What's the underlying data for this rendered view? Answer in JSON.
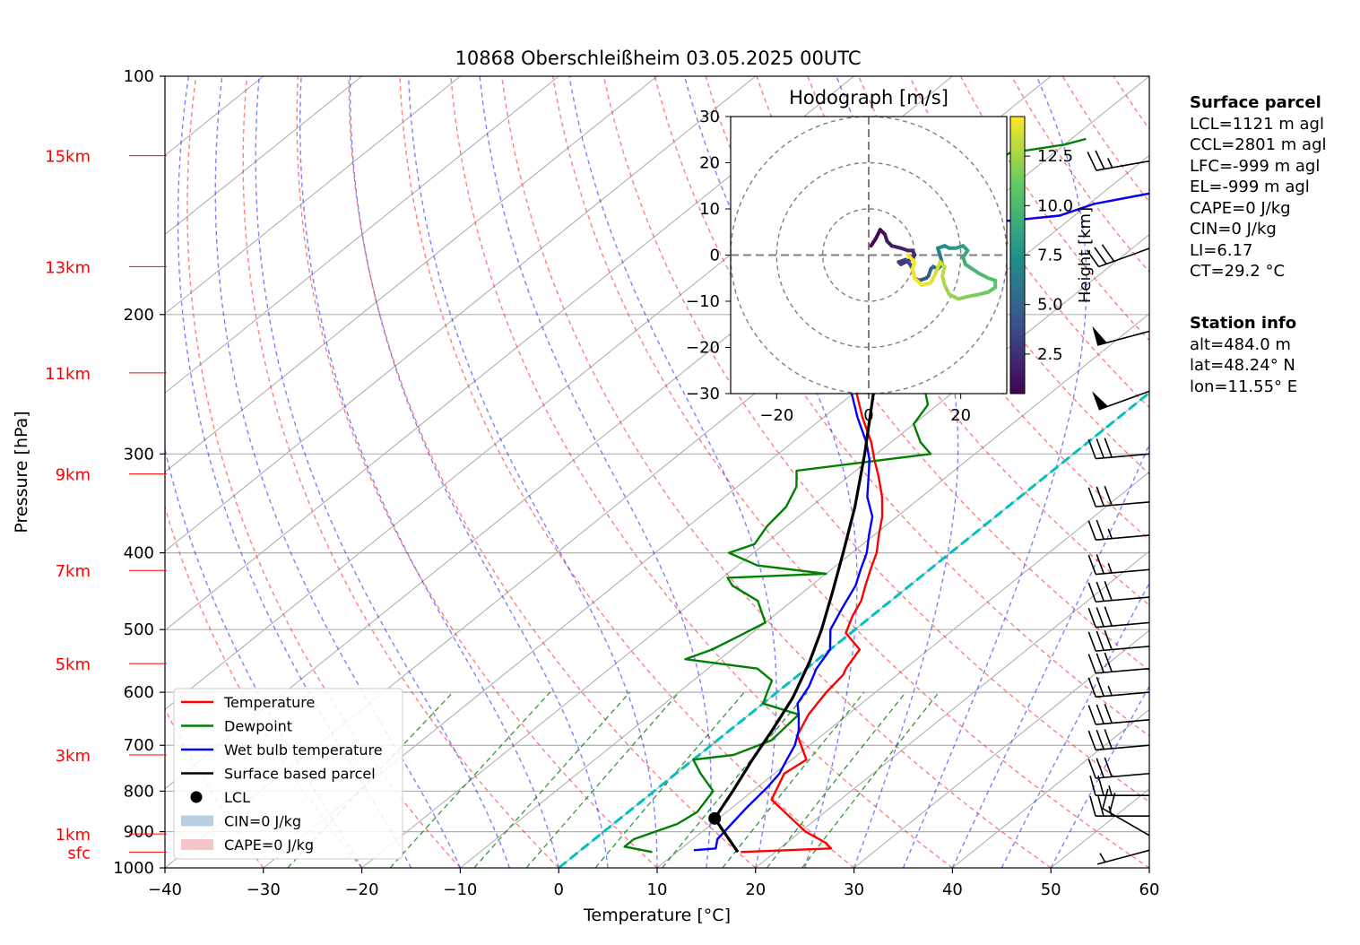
{
  "title": "10868 Oberschleißheim 03.05.2025 00UTC",
  "chart_data": {
    "type": "skew-t",
    "xlabel": "Temperature [°C]",
    "ylabel": "Pressure [hPa]",
    "xlim": [
      -40,
      60
    ],
    "ylim": [
      1000,
      100
    ],
    "y_scale": "log",
    "grid": true,
    "x_ticks": [
      "−40",
      "−30",
      "−20",
      "−10",
      "0",
      "10",
      "20",
      "30",
      "40",
      "50",
      "60"
    ],
    "y_ticks": [
      "100",
      "200",
      "300",
      "400",
      "500",
      "600",
      "700",
      "800",
      "900",
      "1000"
    ],
    "height_labels": [
      {
        "label": "sfc",
        "p": 955
      },
      {
        "label": "1km",
        "p": 906
      },
      {
        "label": "3km",
        "p": 720
      },
      {
        "label": "5km",
        "p": 552
      },
      {
        "label": "7km",
        "p": 421
      },
      {
        "label": "9km",
        "p": 318
      },
      {
        "label": "11km",
        "p": 237
      },
      {
        "label": "13km",
        "p": 174
      },
      {
        "label": "15km",
        "p": 126
      }
    ],
    "series": [
      {
        "name": "Temperature",
        "color": "#ff0000",
        "points": [
          [
            16.5,
            955
          ],
          [
            25.2,
            945
          ],
          [
            24.0,
            930
          ],
          [
            20.5,
            900
          ],
          [
            13.0,
            820
          ],
          [
            11.0,
            760
          ],
          [
            11.5,
            730
          ],
          [
            7.5,
            680
          ],
          [
            6.0,
            640
          ],
          [
            5.0,
            600
          ],
          [
            4.5,
            570
          ],
          [
            4.0,
            560
          ],
          [
            3.0,
            530
          ],
          [
            -0.5,
            505
          ],
          [
            -2.0,
            480
          ],
          [
            -3.0,
            460
          ],
          [
            -4.5,
            440
          ],
          [
            -6.0,
            420
          ],
          [
            -7.5,
            400
          ],
          [
            -9.5,
            380
          ],
          [
            -11.5,
            360
          ],
          [
            -14.0,
            340
          ],
          [
            -17.0,
            320
          ],
          [
            -19.5,
            305
          ],
          [
            -22.0,
            290
          ],
          [
            -26.0,
            270
          ],
          [
            -30.0,
            250
          ],
          [
            -36.0,
            230
          ],
          [
            -42.0,
            210
          ],
          [
            -45.0,
            200
          ],
          [
            -45.0,
            195
          ],
          [
            -41.5,
            190
          ],
          [
            -40.5,
            180
          ],
          [
            -42.0,
            170
          ],
          [
            -42.5,
            160
          ],
          [
            -41.5,
            155
          ],
          [
            -31.5,
            150
          ],
          [
            -29.5,
            145
          ],
          [
            -24.5,
            140
          ],
          [
            -20.0,
            135
          ],
          [
            -16.0,
            130
          ],
          [
            -13.5,
            126
          ],
          [
            -9.5,
            123
          ],
          [
            -7.5,
            120
          ]
        ]
      },
      {
        "name": "Dewpoint",
        "color": "#008000",
        "points": [
          [
            7.5,
            955
          ],
          [
            4.0,
            940
          ],
          [
            4.0,
            920
          ],
          [
            6.5,
            880
          ],
          [
            7.0,
            850
          ],
          [
            6.0,
            800
          ],
          [
            2.5,
            760
          ],
          [
            0.0,
            730
          ],
          [
            3.5,
            720
          ],
          [
            5.5,
            690
          ],
          [
            5.0,
            640
          ],
          [
            0.0,
            620
          ],
          [
            -1.0,
            600
          ],
          [
            -2.0,
            580
          ],
          [
            -5.0,
            560
          ],
          [
            -13.5,
            545
          ],
          [
            -12.0,
            530
          ],
          [
            -11.0,
            510
          ],
          [
            -10.0,
            490
          ],
          [
            -13.5,
            460
          ],
          [
            -18.0,
            440
          ],
          [
            -19.5,
            430
          ],
          [
            -10.0,
            425
          ],
          [
            -18.0,
            415
          ],
          [
            -22.5,
            400
          ],
          [
            -21.0,
            390
          ],
          [
            -22.0,
            370
          ],
          [
            -22.5,
            350
          ],
          [
            -24.0,
            330
          ],
          [
            -26.0,
            315
          ],
          [
            -14.5,
            300
          ],
          [
            -17.0,
            290
          ],
          [
            -20.0,
            275
          ],
          [
            -21.0,
            260
          ],
          [
            -24.0,
            245
          ],
          [
            -27.0,
            225
          ],
          [
            -29.5,
            210
          ],
          [
            -31.0,
            200
          ],
          [
            -35.0,
            190
          ],
          [
            -37.0,
            180
          ],
          [
            -35.5,
            165
          ],
          [
            -42.0,
            158
          ],
          [
            -43.0,
            150
          ],
          [
            -44.5,
            140
          ],
          [
            -45.0,
            130
          ],
          [
            -44.5,
            125
          ],
          [
            -40.0,
            122
          ],
          [
            -38.5,
            120
          ]
        ]
      },
      {
        "name": "Wet bulb temperature",
        "color": "#0000ff",
        "points": [
          [
            11.5,
            950
          ],
          [
            13.5,
            945
          ],
          [
            12.5,
            920
          ],
          [
            12.0,
            880
          ],
          [
            11.5,
            840
          ],
          [
            11.0,
            790
          ],
          [
            10.5,
            760
          ],
          [
            9.5,
            730
          ],
          [
            8.5,
            700
          ],
          [
            7.0,
            670
          ],
          [
            5.0,
            640
          ],
          [
            3.5,
            620
          ],
          [
            2.5,
            590
          ],
          [
            1.0,
            560
          ],
          [
            0.0,
            530
          ],
          [
            -2.5,
            500
          ],
          [
            -4.0,
            470
          ],
          [
            -5.5,
            440
          ],
          [
            -7.0,
            420
          ],
          [
            -8.5,
            400
          ],
          [
            -10.5,
            380
          ],
          [
            -12.5,
            360
          ],
          [
            -15.5,
            340
          ],
          [
            -18.0,
            320
          ],
          [
            -20.0,
            305
          ],
          [
            -22.5,
            290
          ],
          [
            -26.5,
            270
          ],
          [
            -30.5,
            250
          ],
          [
            -36.5,
            230
          ],
          [
            -42.0,
            210
          ],
          [
            -45.0,
            200
          ],
          [
            -45.0,
            195
          ],
          [
            -41.5,
            190
          ],
          [
            -40.5,
            180
          ],
          [
            -42.0,
            170
          ],
          [
            -42.5,
            160
          ],
          [
            -41.5,
            155
          ],
          [
            -31.5,
            150
          ],
          [
            -29.5,
            145
          ],
          [
            -24.5,
            140
          ],
          [
            -20.0,
            135
          ],
          [
            -16.0,
            130
          ],
          [
            -13.5,
            126
          ],
          [
            -9.5,
            123
          ],
          [
            -7.5,
            120
          ]
        ]
      },
      {
        "name": "Surface based parcel",
        "color": "#000000",
        "points": [
          [
            16.2,
            955
          ],
          [
            9.6,
            866
          ],
          [
            8.0,
            800
          ],
          [
            6.0,
            730
          ],
          [
            4.3,
            670
          ],
          [
            2.3,
            610
          ],
          [
            -0.5,
            550
          ],
          [
            -3.4,
            500
          ],
          [
            -6.9,
            450
          ],
          [
            -10.9,
            400
          ],
          [
            -15.5,
            350
          ],
          [
            -21.2,
            300
          ],
          [
            -28.2,
            250
          ],
          [
            -37.2,
            200
          ],
          [
            -49.4,
            150
          ],
          [
            -57.0,
            126
          ]
        ]
      }
    ],
    "lcl": {
      "label": "LCL",
      "t": 9.6,
      "p": 866
    },
    "isotherm_highlight": {
      "t": 0
    },
    "legend": {
      "position": "lower-left",
      "entries": [
        "Temperature",
        "Dewpoint",
        "Wet bulb temperature",
        "Surface based parcel",
        "LCL",
        "CIN=0 J/kg",
        "CAPE=0 J/kg"
      ],
      "cin_color": "#b9d0e4",
      "cape_color": "#f5c4c6"
    },
    "wind_barbs": [
      {
        "p": 950,
        "direction": 255,
        "speed_kt": 5
      },
      {
        "p": 910,
        "direction": 300,
        "speed_kt": 20
      },
      {
        "p": 860,
        "direction": 270,
        "speed_kt": 25
      },
      {
        "p": 810,
        "direction": 270,
        "speed_kt": 25
      },
      {
        "p": 760,
        "direction": 265,
        "speed_kt": 30
      },
      {
        "p": 700,
        "direction": 265,
        "speed_kt": 30
      },
      {
        "p": 650,
        "direction": 265,
        "speed_kt": 30
      },
      {
        "p": 600,
        "direction": 265,
        "speed_kt": 25
      },
      {
        "p": 560,
        "direction": 265,
        "speed_kt": 30
      },
      {
        "p": 525,
        "direction": 265,
        "speed_kt": 30
      },
      {
        "p": 490,
        "direction": 265,
        "speed_kt": 30
      },
      {
        "p": 455,
        "direction": 265,
        "speed_kt": 30
      },
      {
        "p": 420,
        "direction": 265,
        "speed_kt": 25
      },
      {
        "p": 380,
        "direction": 265,
        "speed_kt": 25
      },
      {
        "p": 345,
        "direction": 265,
        "speed_kt": 30
      },
      {
        "p": 300,
        "direction": 265,
        "speed_kt": 30
      },
      {
        "p": 250,
        "direction": 250,
        "speed_kt": 50
      },
      {
        "p": 210,
        "direction": 255,
        "speed_kt": 50
      },
      {
        "p": 165,
        "direction": 250,
        "speed_kt": 30
      },
      {
        "p": 128,
        "direction": 260,
        "speed_kt": 25
      }
    ],
    "hodograph": {
      "title": "Hodograph [m/s]",
      "xlim": [
        -30,
        30
      ],
      "ylim": [
        -30,
        30
      ],
      "x_ticks": [
        "−20",
        "0",
        "20"
      ],
      "y_ticks": [
        "30",
        "20",
        "10",
        "0",
        "−10",
        "−20",
        "−30"
      ],
      "rings": [
        10,
        20,
        30
      ],
      "colorbar_label": "Height [km]",
      "colorbar_ticks": [
        "2.5",
        "5.0",
        "7.5",
        "10.0",
        "12.5"
      ],
      "colorbar_range": [
        0.5,
        14.5
      ],
      "colormap": "viridis",
      "points": [
        [
          0.5,
          2,
          0.5
        ],
        [
          1.5,
          3.5,
          0.8
        ],
        [
          2.5,
          5.5,
          1.0
        ],
        [
          3.5,
          4.5,
          1.2
        ],
        [
          4,
          3,
          1.4
        ],
        [
          5,
          2,
          1.6
        ],
        [
          7,
          1.5,
          1.8
        ],
        [
          8.5,
          1,
          2.0
        ],
        [
          9.5,
          1,
          2.2
        ],
        [
          10,
          0,
          2.4
        ],
        [
          9,
          -1,
          2.6
        ],
        [
          7,
          -2,
          2.8
        ],
        [
          6.5,
          -1.5,
          3.0
        ],
        [
          8,
          -1,
          3.2
        ],
        [
          9,
          -2,
          3.4
        ],
        [
          9.5,
          -3,
          3.6
        ],
        [
          10,
          -5,
          3.8
        ],
        [
          11,
          -5.5,
          4.0
        ],
        [
          12.5,
          -5,
          4.2
        ],
        [
          13,
          -4.5,
          4.5
        ],
        [
          13.5,
          -3,
          4.8
        ],
        [
          14,
          -2.5,
          5.1
        ],
        [
          15,
          -3,
          5.5
        ],
        [
          16,
          -2,
          5.9
        ],
        [
          15.5,
          0,
          6.3
        ],
        [
          15,
          1.5,
          6.7
        ],
        [
          16.5,
          2,
          7.1
        ],
        [
          17.5,
          1.5,
          7.5
        ],
        [
          19,
          1.5,
          7.9
        ],
        [
          20.5,
          2,
          8.3
        ],
        [
          21.5,
          1,
          8.7
        ],
        [
          20.5,
          -0.5,
          9.0
        ],
        [
          21,
          -2,
          9.3
        ],
        [
          22.5,
          -3,
          9.6
        ],
        [
          24,
          -4,
          9.9
        ],
        [
          26,
          -5,
          10.2
        ],
        [
          27.5,
          -5.5,
          10.5
        ],
        [
          27.5,
          -7,
          10.8
        ],
        [
          26,
          -8,
          11.1
        ],
        [
          24,
          -8.5,
          11.4
        ],
        [
          21.5,
          -9,
          11.7
        ],
        [
          19.5,
          -9.5,
          12.0
        ],
        [
          17.5,
          -8.5,
          12.3
        ],
        [
          16.5,
          -6.5,
          12.6
        ],
        [
          16,
          -4.5,
          12.9
        ],
        [
          16.5,
          -2.5,
          13.2
        ],
        [
          15.5,
          -1.5,
          13.5
        ],
        [
          14.5,
          -4,
          13.7
        ],
        [
          13.5,
          -6,
          13.9
        ],
        [
          11.5,
          -6.5,
          14.1
        ],
        [
          10,
          -5,
          14.2
        ],
        [
          9.5,
          -3,
          14.3
        ],
        [
          10,
          -1.5,
          14.4
        ],
        [
          8.5,
          0,
          14.5
        ]
      ]
    }
  },
  "surface_parcel": {
    "heading": "Surface parcel",
    "lines": [
      "LCL=1121 m agl",
      "CCL=2801 m agl",
      "LFC=-999 m agl",
      "EL=-999 m agl",
      "CAPE=0 J/kg",
      "CIN=0 J/kg",
      "LI=6.17",
      "CT=29.2 °C"
    ]
  },
  "station_info": {
    "heading": "Station info",
    "lines": [
      "alt=484.0 m",
      "lat=48.24° N",
      "lon=11.55° E"
    ]
  }
}
